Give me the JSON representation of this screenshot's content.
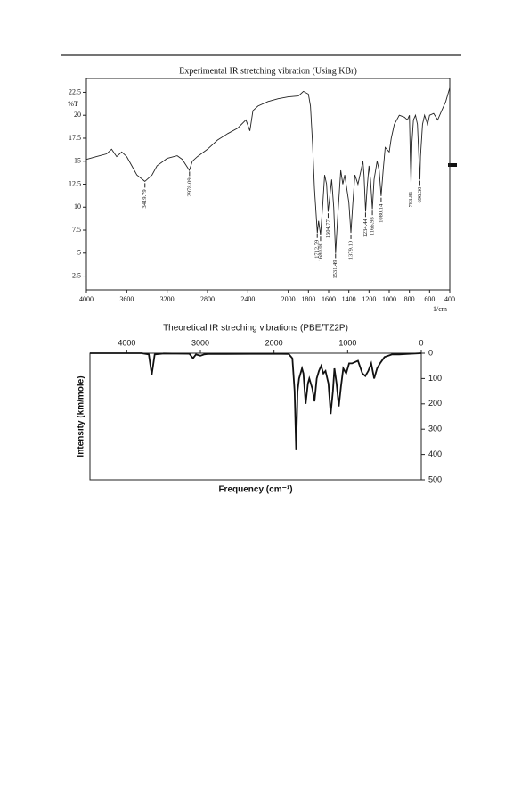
{
  "chart_data": [
    {
      "type": "line",
      "title": "Experimental IR stretching vibration (Using KBr)",
      "ylabel": "%T",
      "xlabel": "1/cm",
      "color": "#222222",
      "xlim": [
        4000,
        400
      ],
      "ylim": [
        1,
        24
      ],
      "xticks": [
        4000,
        3600,
        3200,
        2800,
        2400,
        2000,
        1800,
        1600,
        1400,
        1200,
        1000,
        800,
        600,
        400
      ],
      "yticks": [
        2.5,
        5,
        7.5,
        10,
        12.5,
        15,
        17.5,
        20,
        22.5
      ],
      "x_axis_side": "bottom",
      "y_axis_side": "left",
      "y_inverted": false,
      "x": [
        4000,
        3900,
        3800,
        3750,
        3700,
        3650,
        3600,
        3550,
        3500,
        3420,
        3350,
        3300,
        3200,
        3100,
        3050,
        2980,
        2950,
        2900,
        2800,
        2700,
        2600,
        2500,
        2420,
        2380,
        2350,
        2300,
        2200,
        2100,
        2000,
        1900,
        1850,
        1800,
        1780,
        1760,
        1740,
        1712,
        1700,
        1680,
        1660,
        1640,
        1620,
        1605,
        1590,
        1570,
        1550,
        1531,
        1510,
        1480,
        1460,
        1440,
        1420,
        1400,
        1379,
        1360,
        1340,
        1310,
        1280,
        1260,
        1250,
        1234,
        1220,
        1200,
        1185,
        1167,
        1150,
        1120,
        1100,
        1080,
        1060,
        1040,
        1000,
        980,
        950,
        900,
        850,
        820,
        800,
        790,
        784,
        775,
        760,
        740,
        720,
        700,
        696,
        690,
        670,
        650,
        620,
        600,
        560,
        520,
        480,
        440,
        400
      ],
      "values": [
        15.2,
        15.5,
        15.8,
        16.3,
        15.5,
        16.0,
        15.5,
        14.5,
        13.5,
        12.8,
        13.5,
        14.5,
        15.3,
        15.6,
        15.2,
        14.0,
        15.0,
        15.5,
        16.3,
        17.3,
        18.0,
        18.6,
        19.5,
        18.3,
        20.5,
        21.0,
        21.5,
        21.8,
        22.0,
        22.1,
        22.6,
        22.3,
        21.0,
        17.0,
        12.0,
        7.2,
        8.5,
        7.0,
        10.0,
        13.5,
        12.5,
        9.5,
        11.0,
        13.0,
        10.0,
        5.0,
        9.0,
        14.0,
        12.5,
        13.5,
        12.0,
        10.5,
        7.2,
        10.5,
        13.5,
        12.5,
        14.0,
        15.0,
        13.5,
        9.5,
        12.0,
        14.5,
        13.0,
        9.8,
        13.0,
        15.0,
        14.0,
        11.2,
        14.0,
        16.5,
        16.0,
        17.5,
        19.0,
        20.0,
        19.8,
        19.5,
        20.0,
        15.0,
        12.5,
        17.0,
        19.5,
        20.0,
        19.0,
        14.0,
        13.0,
        15.5,
        19.0,
        20.0,
        19.0,
        20.0,
        20.2,
        19.5,
        20.5,
        21.5,
        23.0
      ],
      "peaks": [
        {
          "x": 3419.79,
          "label": "3419.79"
        },
        {
          "x": 2978.09,
          "label": "2978.09"
        },
        {
          "x": 1712.79,
          "label": "1712.79"
        },
        {
          "x": 1680,
          "label": "1680.00"
        },
        {
          "x": 1604.77,
          "label": "1604.77"
        },
        {
          "x": 1531.49,
          "label": "1531.49"
        },
        {
          "x": 1379.1,
          "label": "1379.10"
        },
        {
          "x": 1234.44,
          "label": "1234.44"
        },
        {
          "x": 1166.93,
          "label": "1166.93"
        },
        {
          "x": 1080.14,
          "label": "1080.14"
        },
        {
          "x": 783.81,
          "label": "783.81"
        },
        {
          "x": 696.3,
          "label": "696.30"
        }
      ]
    },
    {
      "type": "line",
      "title": "Theoretical IR streching vibrations (PBE/TZ2P)",
      "ylabel": "Intensity (km/mole)",
      "xlabel": "Frequency (cm⁻¹)",
      "color": "#111111",
      "xlim": [
        4500,
        0
      ],
      "ylim": [
        0,
        500
      ],
      "xticks": [
        4000,
        3000,
        2000,
        1000,
        0
      ],
      "yticks": [
        0,
        100,
        200,
        300,
        400,
        500
      ],
      "x_axis_side": "top",
      "y_axis_side": "right",
      "y_inverted": true,
      "x": [
        4500,
        3800,
        3700,
        3660,
        3620,
        3500,
        3150,
        3100,
        3060,
        3000,
        2950,
        2900,
        2000,
        1800,
        1750,
        1720,
        1700,
        1680,
        1660,
        1620,
        1600,
        1570,
        1540,
        1520,
        1480,
        1450,
        1420,
        1390,
        1360,
        1330,
        1300,
        1260,
        1230,
        1200,
        1180,
        1150,
        1120,
        1090,
        1060,
        1020,
        980,
        940,
        900,
        860,
        800,
        760,
        720,
        680,
        640,
        600,
        560,
        500,
        400,
        300,
        200,
        0
      ],
      "values": [
        0,
        0,
        5,
        85,
        5,
        1,
        2,
        20,
        5,
        10,
        5,
        3,
        2,
        3,
        20,
        150,
        380,
        150,
        100,
        60,
        80,
        200,
        120,
        100,
        140,
        190,
        100,
        70,
        50,
        80,
        70,
        120,
        240,
        150,
        60,
        120,
        210,
        130,
        60,
        80,
        40,
        40,
        35,
        30,
        80,
        90,
        70,
        40,
        100,
        60,
        40,
        15,
        5,
        5,
        3,
        0
      ]
    }
  ]
}
